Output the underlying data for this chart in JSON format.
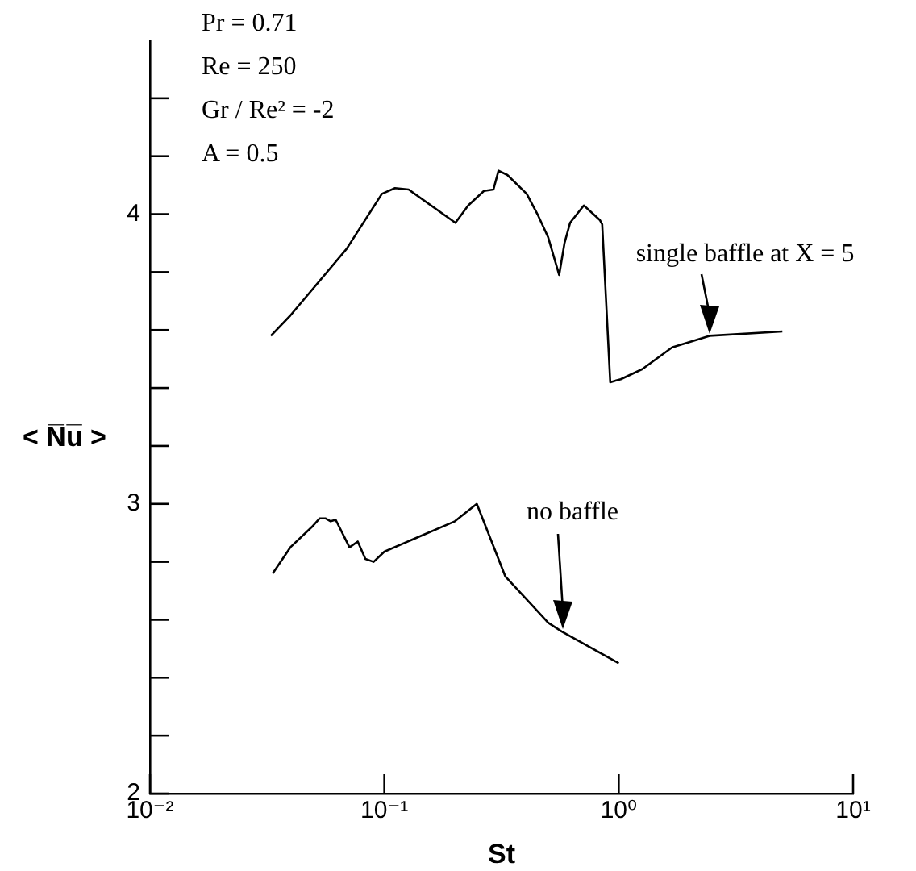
{
  "chart_data": {
    "type": "line",
    "xlabel": "St",
    "ylabel": "< N̅u̅ >",
    "log": "x",
    "marker": "none",
    "line_style": "solid",
    "grid": false,
    "legend": false,
    "xlim": [
      0.01,
      10
    ],
    "xticks": [
      {
        "value": 0.01,
        "label": "10⁻²"
      },
      {
        "value": 0.1,
        "label": "10⁻¹"
      },
      {
        "value": 1,
        "label": "10⁰"
      },
      {
        "value": 10,
        "label": "10¹"
      }
    ],
    "ylim": [
      2,
      4.6
    ],
    "yticks": [
      2,
      {
        "value": 2.2,
        "label": null
      },
      {
        "value": 2.4,
        "label": null
      },
      {
        "value": 2.6,
        "label": null
      },
      {
        "value": 2.8,
        "label": null
      },
      3,
      {
        "value": 3.2,
        "label": null
      },
      {
        "value": 3.4,
        "label": null
      },
      {
        "value": 3.6,
        "label": null
      },
      {
        "value": 3.8,
        "label": null
      },
      4,
      {
        "value": 4.2,
        "label": null
      },
      {
        "value": 4.4,
        "label": null
      }
    ],
    "series": [
      {
        "color": "#000000",
        "x": [
          0.0328,
          0.0397,
          0.069,
          0.0976,
          0.111,
          0.127,
          0.201,
          0.228,
          0.266,
          0.292,
          0.307,
          0.335,
          0.405,
          0.45,
          0.5,
          0.557,
          0.587,
          0.62,
          0.71,
          0.83,
          0.85,
          0.92,
          1.02,
          1.26,
          1.69,
          2.44,
          4.99
        ],
        "values": [
          3.58,
          3.65,
          3.88,
          4.07,
          4.09,
          4.085,
          3.97,
          4.03,
          4.08,
          4.085,
          4.15,
          4.135,
          4.07,
          4.0,
          3.92,
          3.79,
          3.9,
          3.97,
          4.03,
          3.98,
          3.965,
          3.42,
          3.43,
          3.465,
          3.54,
          3.58,
          3.595
        ]
      },
      {
        "color": "#000000",
        "x": [
          0.0334,
          0.0397,
          0.049,
          0.053,
          0.056,
          0.059,
          0.062,
          0.071,
          0.077,
          0.083,
          0.09,
          0.1,
          0.2,
          0.248,
          0.328,
          0.5,
          0.57,
          1.0
        ],
        "values": [
          2.76,
          2.85,
          2.92,
          2.95,
          2.95,
          2.94,
          2.945,
          2.85,
          2.87,
          2.81,
          2.8,
          2.835,
          2.94,
          3.0,
          2.75,
          2.59,
          2.56,
          2.45
        ]
      }
    ],
    "annotations": [
      "Pr = 0.71",
      "Re = 250",
      "Gr / Re² = -2",
      "A = 0.5",
      "single baffle at X = 5",
      "no baffle"
    ]
  }
}
